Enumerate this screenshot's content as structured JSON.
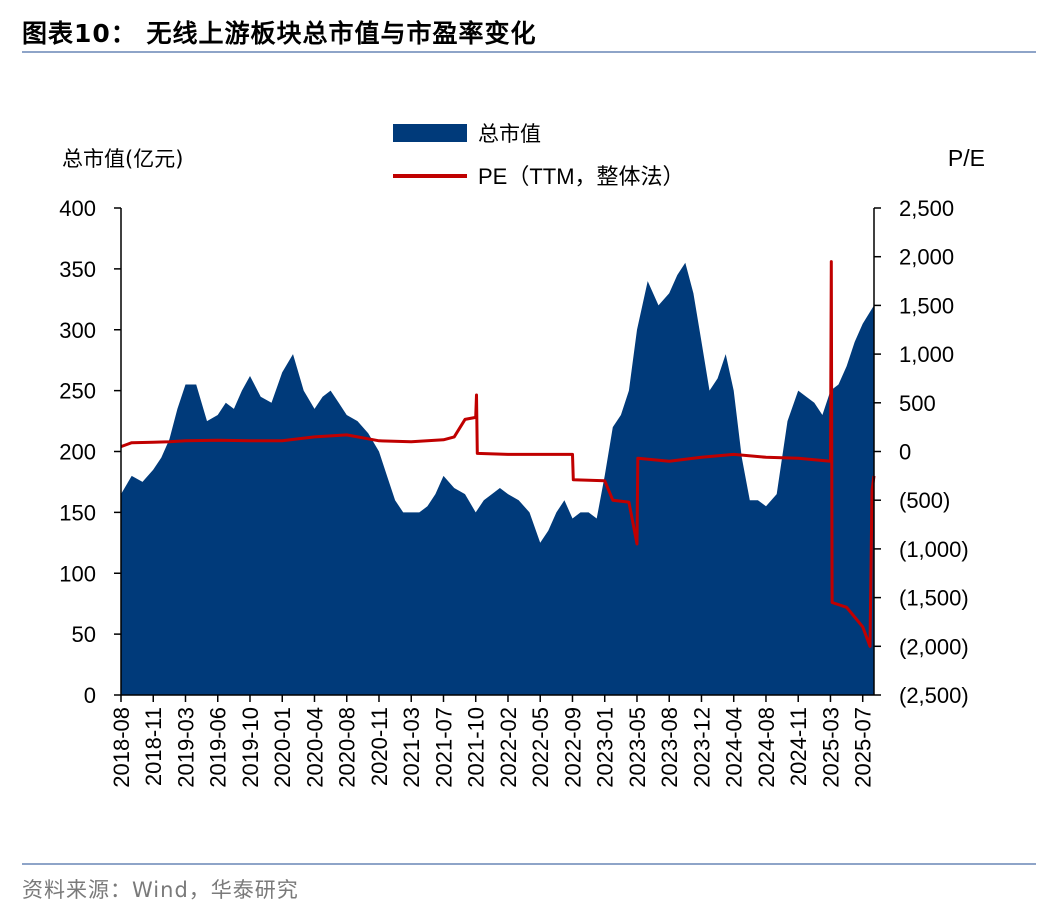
{
  "header": {
    "title": "图表10：  无线上游板块总市值与市盈率变化"
  },
  "footer": {
    "source": "资料来源：Wind，华泰研究"
  },
  "colors": {
    "area": "#003a7a",
    "line": "#c00000",
    "rule": "#8ea4c8"
  },
  "chart_data": {
    "type": "area",
    "left_axis_title": "总市值(亿元)",
    "right_axis_title": "P/E",
    "legend": [
      {
        "name": "总市值",
        "kind": "area"
      },
      {
        "name": "PE（TTM，整体法）",
        "kind": "line"
      }
    ],
    "legend_position": "top-center",
    "grid": false,
    "left_ylim": [
      0,
      400
    ],
    "left_ticks": [
      "0",
      "50",
      "100",
      "150",
      "200",
      "250",
      "300",
      "350",
      "400"
    ],
    "right_ylim": [
      -2500,
      2500
    ],
    "right_ticks": [
      "(2,500)",
      "(2,000)",
      "(1,500)",
      "(1,000)",
      "(500)",
      "0",
      "500",
      "1,000",
      "1,500",
      "2,000",
      "2,500"
    ],
    "x_ticks": [
      "2018-08",
      "2018-11",
      "2019-03",
      "2019-06",
      "2019-10",
      "2020-01",
      "2020-04",
      "2020-08",
      "2020-11",
      "2021-03",
      "2021-07",
      "2021-10",
      "2022-02",
      "2022-05",
      "2022-09",
      "2023-01",
      "2023-05",
      "2023-08",
      "2023-12",
      "2024-04",
      "2024-08",
      "2024-11",
      "2025-03",
      "2025-07"
    ],
    "series": [
      {
        "name": "总市值",
        "points": [
          [
            "2018-08",
            165
          ],
          [
            "2018-09",
            180
          ],
          [
            "2018-10",
            175
          ],
          [
            "2018-11",
            185
          ],
          [
            "2018-12",
            195
          ],
          [
            "2019-01",
            210
          ],
          [
            "2019-02",
            235
          ],
          [
            "2019-03",
            255
          ],
          [
            "2019-04",
            255
          ],
          [
            "2019-05",
            225
          ],
          [
            "2019-06",
            230
          ],
          [
            "2019-07",
            240
          ],
          [
            "2019-08",
            235
          ],
          [
            "2019-09",
            250
          ],
          [
            "2019-10",
            262
          ],
          [
            "2019-11",
            245
          ],
          [
            "2019-12",
            240
          ],
          [
            "2020-01",
            265
          ],
          [
            "2020-02",
            280
          ],
          [
            "2020-03",
            250
          ],
          [
            "2020-04",
            235
          ],
          [
            "2020-05",
            245
          ],
          [
            "2020-06",
            250
          ],
          [
            "2020-07",
            240
          ],
          [
            "2020-08",
            230
          ],
          [
            "2020-09",
            225
          ],
          [
            "2020-10",
            215
          ],
          [
            "2020-11",
            200
          ],
          [
            "2020-12",
            180
          ],
          [
            "2021-01",
            160
          ],
          [
            "2021-02",
            150
          ],
          [
            "2021-03",
            150
          ],
          [
            "2021-04",
            150
          ],
          [
            "2021-05",
            155
          ],
          [
            "2021-06",
            165
          ],
          [
            "2021-07",
            180
          ],
          [
            "2021-08",
            170
          ],
          [
            "2021-09",
            165
          ],
          [
            "2021-10",
            150
          ],
          [
            "2021-11",
            160
          ],
          [
            "2021-12",
            165
          ],
          [
            "2022-01",
            170
          ],
          [
            "2022-02",
            165
          ],
          [
            "2022-03",
            160
          ],
          [
            "2022-04",
            150
          ],
          [
            "2022-05",
            125
          ],
          [
            "2022-06",
            135
          ],
          [
            "2022-07",
            150
          ],
          [
            "2022-08",
            160
          ],
          [
            "2022-09",
            145
          ],
          [
            "2022-10",
            150
          ],
          [
            "2022-11",
            150
          ],
          [
            "2022-12",
            145
          ],
          [
            "2023-01",
            180
          ],
          [
            "2023-02",
            220
          ],
          [
            "2023-03",
            230
          ],
          [
            "2023-04",
            250
          ],
          [
            "2023-05",
            300
          ],
          [
            "2023-06",
            340
          ],
          [
            "2023-07",
            320
          ],
          [
            "2023-08",
            330
          ],
          [
            "2023-09",
            345
          ],
          [
            "2023-10",
            355
          ],
          [
            "2023-11",
            330
          ],
          [
            "2023-12",
            290
          ],
          [
            "2024-01",
            250
          ],
          [
            "2024-02",
            260
          ],
          [
            "2024-03",
            280
          ],
          [
            "2024-04",
            250
          ],
          [
            "2024-05",
            195
          ],
          [
            "2024-06",
            160
          ],
          [
            "2024-07",
            160
          ],
          [
            "2024-08",
            155
          ],
          [
            "2024-09",
            165
          ],
          [
            "2024-10",
            225
          ],
          [
            "2024-11",
            250
          ],
          [
            "2024-12",
            245
          ],
          [
            "2025-01",
            240
          ],
          [
            "2025-02",
            230
          ],
          [
            "2025-03",
            250
          ],
          [
            "2025-04",
            255
          ],
          [
            "2025-05",
            270
          ],
          [
            "2025-06",
            290
          ],
          [
            "2025-07",
            305
          ],
          [
            "2025-08",
            320
          ]
        ]
      },
      {
        "name": "PE（TTM，整体法）",
        "points": [
          [
            "2018-08",
            50
          ],
          [
            "2018-09",
            90
          ],
          [
            "2018-11",
            95
          ],
          [
            "2019-01",
            100
          ],
          [
            "2019-03",
            110
          ],
          [
            "2019-06",
            115
          ],
          [
            "2019-10",
            110
          ],
          [
            "2020-01",
            110
          ],
          [
            "2020-04",
            150
          ],
          [
            "2020-08",
            170
          ],
          [
            "2020-11",
            110
          ],
          [
            "2021-03",
            100
          ],
          [
            "2021-07",
            120
          ],
          [
            "2021-08",
            150
          ],
          [
            "2021-09",
            330
          ],
          [
            "2021-10",
            350
          ],
          [
            "2021-10",
            580
          ],
          [
            "2021-10",
            -20
          ],
          [
            "2022-02",
            -30
          ],
          [
            "2022-05",
            -30
          ],
          [
            "2022-09",
            -30
          ],
          [
            "2022-09",
            -290
          ],
          [
            "2023-01",
            -300
          ],
          [
            "2023-02",
            -500
          ],
          [
            "2023-04",
            -520
          ],
          [
            "2023-05",
            -950
          ],
          [
            "2023-05",
            -70
          ],
          [
            "2023-08",
            -100
          ],
          [
            "2023-12",
            -60
          ],
          [
            "2024-04",
            -30
          ],
          [
            "2024-08",
            -60
          ],
          [
            "2024-11",
            -70
          ],
          [
            "2025-03",
            -100
          ],
          [
            "2025-03",
            1950
          ],
          [
            "2025-03",
            -1550
          ],
          [
            "2025-05",
            -1600
          ],
          [
            "2025-07",
            -1800
          ],
          [
            "2025-08",
            -2000
          ],
          [
            "2025-08",
            -400
          ],
          [
            "2025-08",
            -250
          ]
        ]
      }
    ]
  }
}
